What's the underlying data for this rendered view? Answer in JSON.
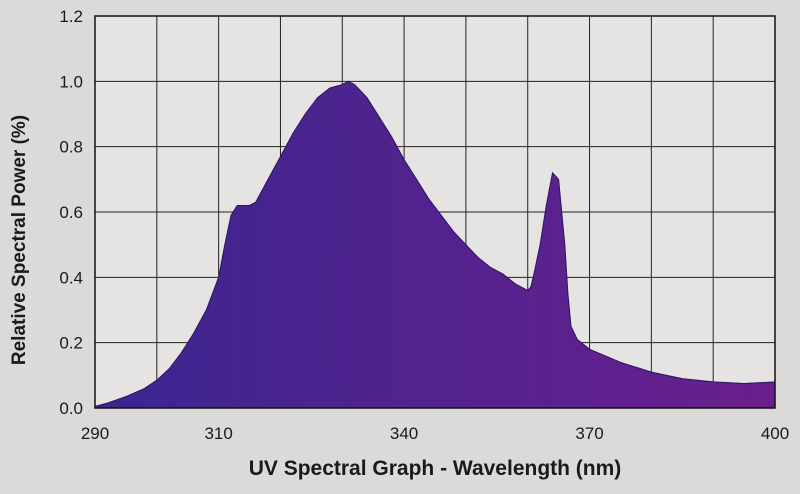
{
  "chart_data": {
    "type": "area",
    "title": "",
    "xlabel": "UV Spectral Graph - Wavelength (nm)",
    "ylabel": "Relative Spectral Power (%)",
    "xlim": [
      290,
      400
    ],
    "ylim": [
      0,
      1.2
    ],
    "x_ticks": [
      290,
      310,
      340,
      370,
      400
    ],
    "x_tick_labels": [
      "290",
      "310",
      "340",
      "370",
      "400"
    ],
    "y_ticks": [
      0,
      0.2,
      0.4,
      0.6,
      0.8,
      1.0,
      1.2
    ],
    "y_tick_labels": [
      "0.0",
      "0.2",
      "0.4",
      "0.6",
      "0.8",
      "1.0",
      "1.2"
    ],
    "grid": true,
    "fill_gradient": [
      "#3b2690",
      "#6a1f8c"
    ],
    "series": [
      {
        "x": [
          290,
          292,
          295,
          298,
          300,
          302,
          304,
          306,
          308,
          310,
          311,
          312,
          313,
          314,
          315,
          316,
          318,
          320,
          322,
          324,
          326,
          328,
          330,
          331,
          332,
          333,
          334,
          336,
          338,
          340,
          342,
          344,
          346,
          348,
          350,
          352,
          354,
          356,
          358,
          360,
          360.5,
          361,
          362,
          363,
          364,
          365,
          366,
          366.5,
          367,
          368,
          370,
          375,
          380,
          385,
          390,
          395,
          400
        ],
        "y": [
          0.005,
          0.015,
          0.035,
          0.06,
          0.085,
          0.12,
          0.17,
          0.23,
          0.3,
          0.4,
          0.5,
          0.59,
          0.62,
          0.62,
          0.62,
          0.63,
          0.7,
          0.77,
          0.84,
          0.9,
          0.95,
          0.98,
          0.99,
          1.0,
          0.99,
          0.97,
          0.95,
          0.89,
          0.83,
          0.76,
          0.7,
          0.64,
          0.59,
          0.54,
          0.5,
          0.46,
          0.43,
          0.41,
          0.38,
          0.36,
          0.37,
          0.41,
          0.5,
          0.62,
          0.72,
          0.7,
          0.5,
          0.35,
          0.25,
          0.21,
          0.18,
          0.14,
          0.11,
          0.09,
          0.08,
          0.075,
          0.08
        ]
      }
    ]
  }
}
